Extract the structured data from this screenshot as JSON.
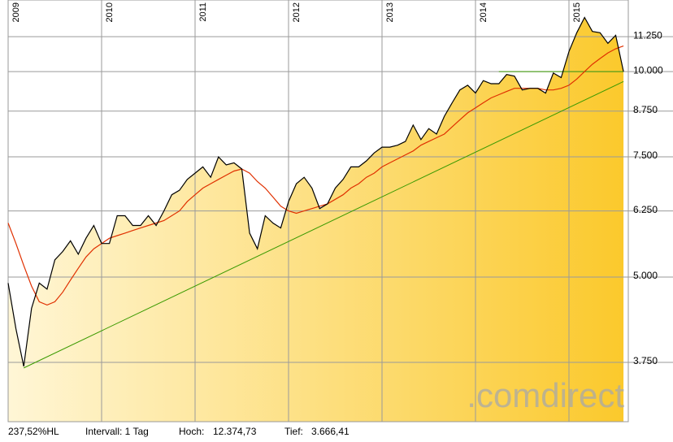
{
  "chart_data": {
    "type": "line",
    "log_scale": true,
    "grid": true,
    "categories": [
      "2009",
      null,
      null,
      null,
      null,
      null,
      null,
      null,
      null,
      null,
      null,
      null,
      "2010",
      null,
      null,
      null,
      null,
      null,
      null,
      null,
      null,
      null,
      null,
      null,
      "2011",
      null,
      null,
      null,
      null,
      null,
      null,
      null,
      null,
      null,
      null,
      null,
      "2012",
      null,
      null,
      null,
      null,
      null,
      null,
      null,
      null,
      null,
      null,
      null,
      "2013",
      null,
      null,
      null,
      null,
      null,
      null,
      null,
      null,
      null,
      null,
      null,
      "2014",
      null,
      null,
      null,
      null,
      null,
      null,
      null,
      null,
      null,
      null,
      null,
      "2015",
      null,
      null,
      null,
      null,
      null,
      null,
      null
    ],
    "series": [
      {
        "color": "#000000",
        "fill": true,
        "values": [
          4900,
          4200,
          3700,
          4500,
          4900,
          4800,
          5300,
          5450,
          5650,
          5400,
          5700,
          5950,
          5600,
          5600,
          6150,
          6150,
          5950,
          5950,
          6150,
          5950,
          6250,
          6600,
          6700,
          6950,
          7100,
          7250,
          7000,
          7500,
          7300,
          7350,
          7200,
          5800,
          5500,
          6150,
          6000,
          5900,
          6450,
          6850,
          7000,
          6750,
          6300,
          6400,
          6750,
          6950,
          7250,
          7250,
          7400,
          7600,
          7750,
          7750,
          7800,
          7900,
          8350,
          7950,
          8250,
          8100,
          8600,
          9000,
          9400,
          9550,
          9300,
          9700,
          9600,
          9600,
          9900,
          9850,
          9400,
          9450,
          9450,
          9300,
          9950,
          9800,
          10700,
          11400,
          12000,
          11450,
          11400,
          11000,
          11300,
          10000
        ]
      },
      {
        "color": "#e03000",
        "values": [
          6000,
          5600,
          5200,
          4850,
          4600,
          4550,
          4600,
          4750,
          4950,
          5150,
          5350,
          5500,
          5600,
          5700,
          5750,
          5800,
          5850,
          5900,
          5950,
          6000,
          6050,
          6150,
          6250,
          6450,
          6600,
          6750,
          6850,
          6950,
          7050,
          7150,
          7200,
          7100,
          6900,
          6750,
          6550,
          6350,
          6250,
          6200,
          6250,
          6300,
          6350,
          6400,
          6500,
          6600,
          6750,
          6850,
          7000,
          7100,
          7250,
          7350,
          7450,
          7550,
          7650,
          7800,
          7900,
          8000,
          8100,
          8300,
          8500,
          8700,
          8850,
          9000,
          9150,
          9250,
          9350,
          9450,
          9450,
          9450,
          9450,
          9400,
          9400,
          9450,
          9550,
          9750,
          10000,
          10250,
          10450,
          10650,
          10800,
          10900
        ]
      }
    ],
    "trend_lines": [
      {
        "color": "#3a9a00",
        "x": [
          2,
          79
        ],
        "values": [
          3680,
          9670
        ]
      },
      {
        "color": "#3a9a00",
        "x": [
          63,
          79
        ],
        "values": [
          10000,
          10000
        ]
      }
    ],
    "ylim": [
      3070,
      12730
    ],
    "yticks": [
      {
        "value": 3750,
        "label": "3.750"
      },
      {
        "value": 5000,
        "label": "5.000"
      },
      {
        "value": 6250,
        "label": "6.250"
      },
      {
        "value": 7500,
        "label": "7.500"
      },
      {
        "value": 8750,
        "label": "8.750"
      },
      {
        "value": 10000,
        "label": "10.000"
      },
      {
        "value": 11250,
        "label": "11.250"
      }
    ],
    "watermark": ".comdirect",
    "footer": {
      "change": "237,52%HL",
      "interval": "Intervall: 1 Tag",
      "high_label": "Hoch:",
      "high": "12.374,73",
      "low_label": "Tief:",
      "low": "3.666,41"
    }
  }
}
